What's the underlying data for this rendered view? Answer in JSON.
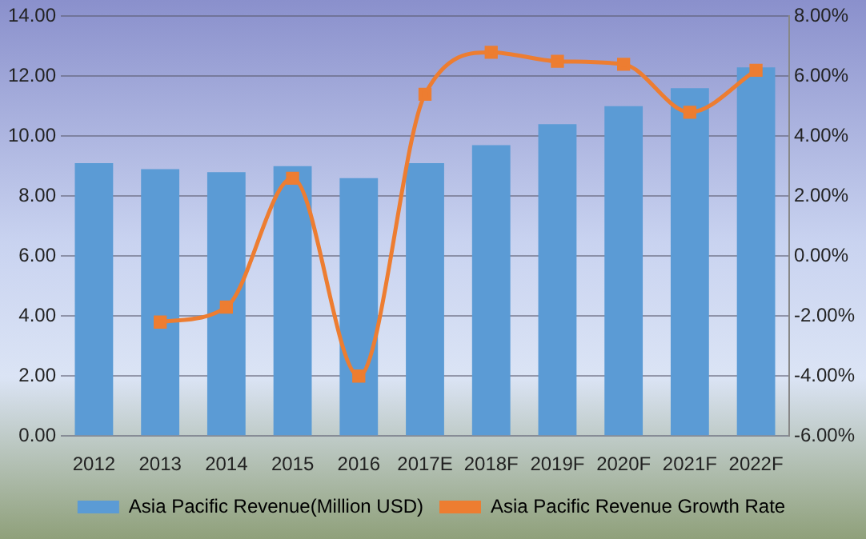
{
  "chart_data": {
    "type": "bar",
    "categories": [
      "2012",
      "2013",
      "2014",
      "2015",
      "2016",
      "2017E",
      "2018F",
      "2019F",
      "2020F",
      "2021F",
      "2022F"
    ],
    "series": [
      {
        "name": "Asia Pacific Revenue(Million USD)",
        "color": "#5b9bd5",
        "values": [
          9.1,
          8.9,
          8.8,
          9.0,
          8.6,
          9.1,
          9.7,
          10.4,
          11.0,
          11.6,
          12.3
        ]
      },
      {
        "name": "Asia Pacific Revenue Growth Rate",
        "type": "line",
        "axis": "y2",
        "color": "#ed7d31",
        "values": [
          null,
          -2.2,
          -1.7,
          2.6,
          -4.0,
          5.4,
          6.8,
          6.5,
          6.4,
          4.8,
          6.2
        ]
      }
    ],
    "ylim": [
      0,
      14
    ],
    "yticks": [
      {
        "value": 0,
        "label": "0.00"
      },
      {
        "value": 2,
        "label": "2.00"
      },
      {
        "value": 4,
        "label": "4.00"
      },
      {
        "value": 6,
        "label": "6.00"
      },
      {
        "value": 8,
        "label": "8.00"
      },
      {
        "value": 10,
        "label": "10.00"
      },
      {
        "value": 12,
        "label": "12.00"
      },
      {
        "value": 14,
        "label": "14.00"
      }
    ],
    "y2lim": [
      -6,
      8
    ],
    "y2ticks": [
      {
        "value": -6,
        "label": "-6.00%"
      },
      {
        "value": -4,
        "label": "-4.00%"
      },
      {
        "value": -2,
        "label": "-2.00%"
      },
      {
        "value": 0,
        "label": "0.00%"
      },
      {
        "value": 2,
        "label": "2.00%"
      },
      {
        "value": 4,
        "label": "4.00%"
      },
      {
        "value": 6,
        "label": "6.00%"
      },
      {
        "value": 8,
        "label": "8.00%"
      }
    ],
    "grid": "y",
    "legend": "bottom",
    "marker": "square"
  }
}
